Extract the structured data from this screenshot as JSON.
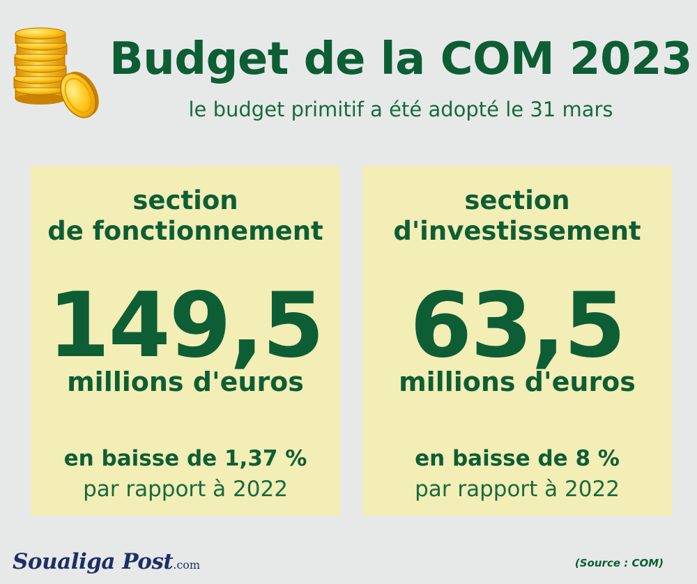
{
  "header": {
    "title": "Budget de la COM 2023",
    "subtitle": "le budget primitif a été adopté le 31 mars",
    "icon": "gold-coins-icon"
  },
  "cards": [
    {
      "heading_line1": "section",
      "heading_line2": "de fonctionnement",
      "amount": "149,5",
      "unit": "millions d'euros",
      "change": "en baisse de 1,37 %",
      "comparison": "par rapport à 2022"
    },
    {
      "heading_line1": "section",
      "heading_line2": "d'investissement",
      "amount": "63,5",
      "unit": "millions d'euros",
      "change": "en baisse de 8 %",
      "comparison": "par rapport à 2022"
    }
  ],
  "footer": {
    "logo_text": "Soualiga Post",
    "logo_domain": ".com",
    "source": "(Source : COM)"
  },
  "colors": {
    "background": "#e7e9e8",
    "card": "#f3edb6",
    "green": "#0d5e35",
    "logo": "#1d2f66",
    "gold": "#f2b600"
  }
}
